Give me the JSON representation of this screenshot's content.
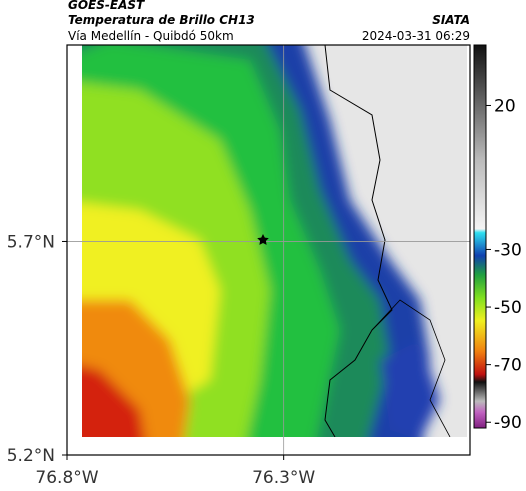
{
  "header": {
    "title": "GOES-EAST",
    "subtitle": "Temperatura de Brillo CH13",
    "region": "Vía Medellín - Quibdó 50km",
    "source": "SIATA",
    "datetime": "2024-03-31 06:29"
  },
  "map": {
    "xlim": [
      -76.8,
      -75.87
    ],
    "ylim": [
      5.2,
      6.16
    ],
    "xticks": [
      {
        "value": -76.8,
        "label": "76.8°W"
      },
      {
        "value": -76.3,
        "label": "76.3°W"
      }
    ],
    "yticks": [
      {
        "value": 5.2,
        "label": "5.2°N"
      },
      {
        "value": 5.7,
        "label": "5.7°N"
      }
    ]
  },
  "colorbar": {
    "lim": [
      41,
      -92
    ],
    "ticks": [
      20,
      -30,
      -50,
      -70,
      -90
    ]
  }
}
